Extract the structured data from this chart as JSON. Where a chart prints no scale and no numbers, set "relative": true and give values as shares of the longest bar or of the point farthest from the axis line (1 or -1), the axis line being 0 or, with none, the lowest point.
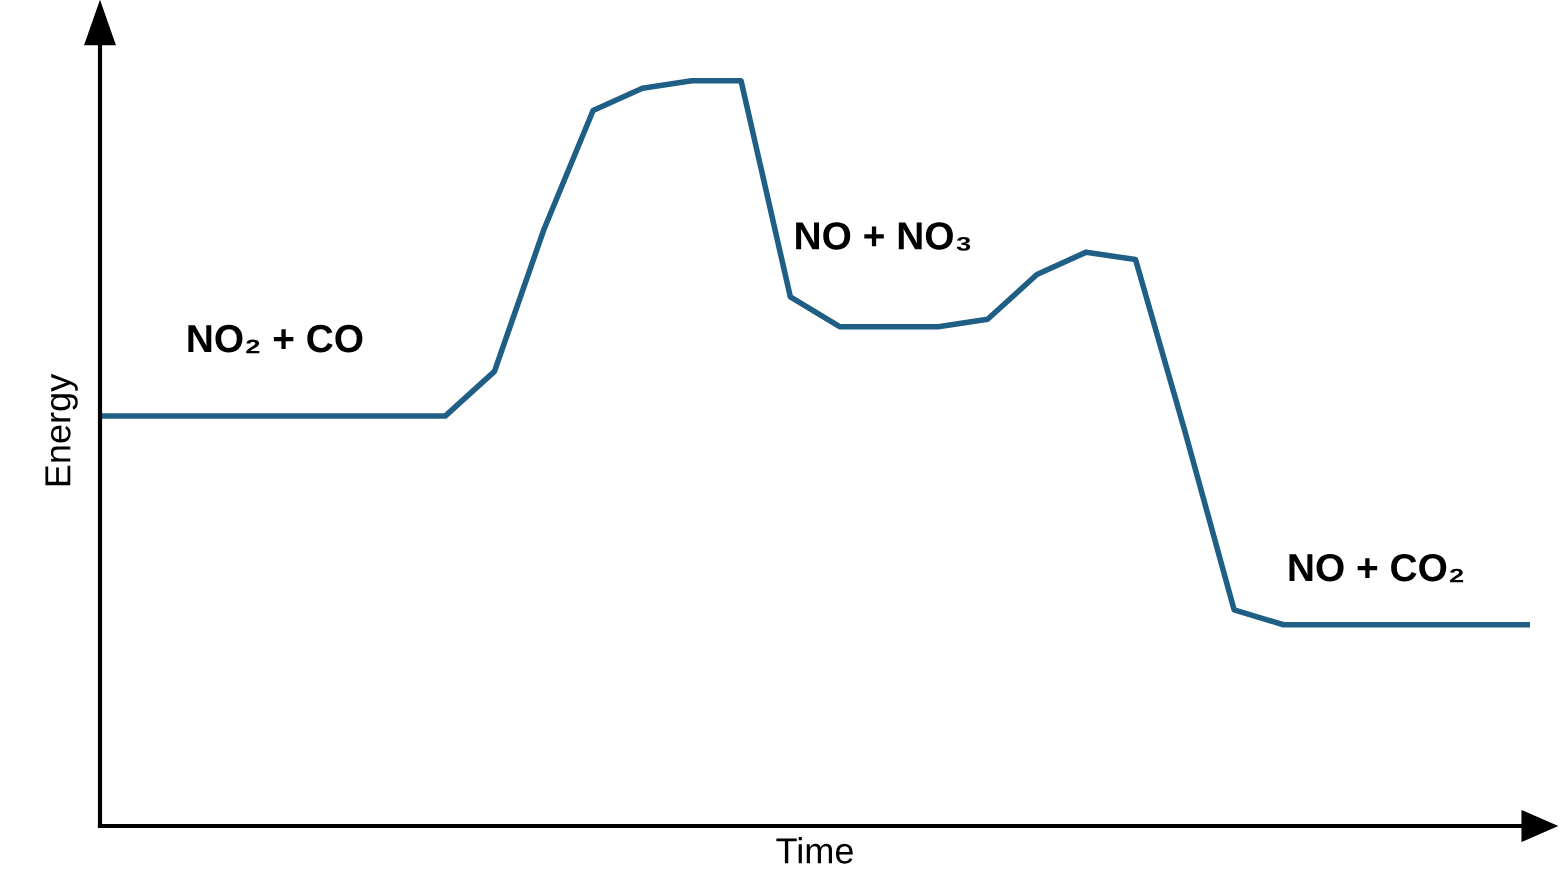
{
  "chart_data": {
    "type": "line",
    "relative": true,
    "xlabel": "Time",
    "ylabel": "Energy",
    "tick_labels": false,
    "grid": false,
    "marker": "none",
    "line_style": "solid",
    "categories": [
      null,
      null,
      null,
      null,
      null,
      null,
      null,
      null,
      null,
      null,
      null,
      null,
      null,
      null,
      null,
      null,
      null,
      null,
      null,
      null,
      null,
      null,
      null,
      null,
      null,
      null,
      null,
      null,
      null,
      null
    ],
    "series": [
      {
        "color": "#1f5f85",
        "values": [
          0.55,
          0.55,
          0.55,
          0.55,
          0.55,
          0.55,
          0.55,
          0.55,
          0.61,
          0.8,
          0.96,
          0.99,
          1.0,
          1.0,
          0.71,
          0.67,
          0.67,
          0.67,
          0.68,
          0.74,
          0.77,
          0.76,
          0.53,
          0.29,
          0.27,
          0.27,
          0.27,
          0.27,
          0.27,
          0.27
        ]
      }
    ],
    "annotations": [
      "NO₂ + CO",
      "NO + NO₃",
      "NO + CO₂"
    ]
  }
}
